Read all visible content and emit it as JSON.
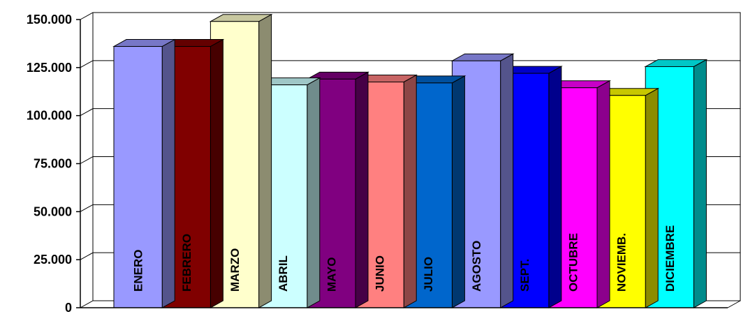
{
  "chart_data": {
    "type": "bar",
    "title": "",
    "xlabel": "",
    "ylabel": "",
    "ylim": [
      0,
      150000
    ],
    "yticks": [
      0,
      25000,
      50000,
      75000,
      100000,
      125000,
      150000
    ],
    "ytick_labels": [
      "0",
      "25.000",
      "50.000",
      "75.000",
      "100.000",
      "125.000",
      "150.000"
    ],
    "grid": true,
    "legend": "none",
    "categories": [
      "ENERO",
      "FEBRERO",
      "MARZO",
      "ABRIL",
      "MAYO",
      "JUNIO",
      "JULIO",
      "AGOSTO",
      "SEPT.",
      "OCTUBRE",
      "NOVIEMB.",
      "DICIEMBRE"
    ],
    "values": [
      136000,
      136000,
      149000,
      116000,
      119000,
      117500,
      117000,
      128500,
      122000,
      114500,
      110500,
      125500
    ],
    "colors": [
      "#9999ff",
      "#800000",
      "#ffffcc",
      "#ccffff",
      "#800080",
      "#ff8080",
      "#0066cc",
      "#9999ff",
      "#0000ff",
      "#ff00ff",
      "#ffff00",
      "#00ffff"
    ]
  }
}
